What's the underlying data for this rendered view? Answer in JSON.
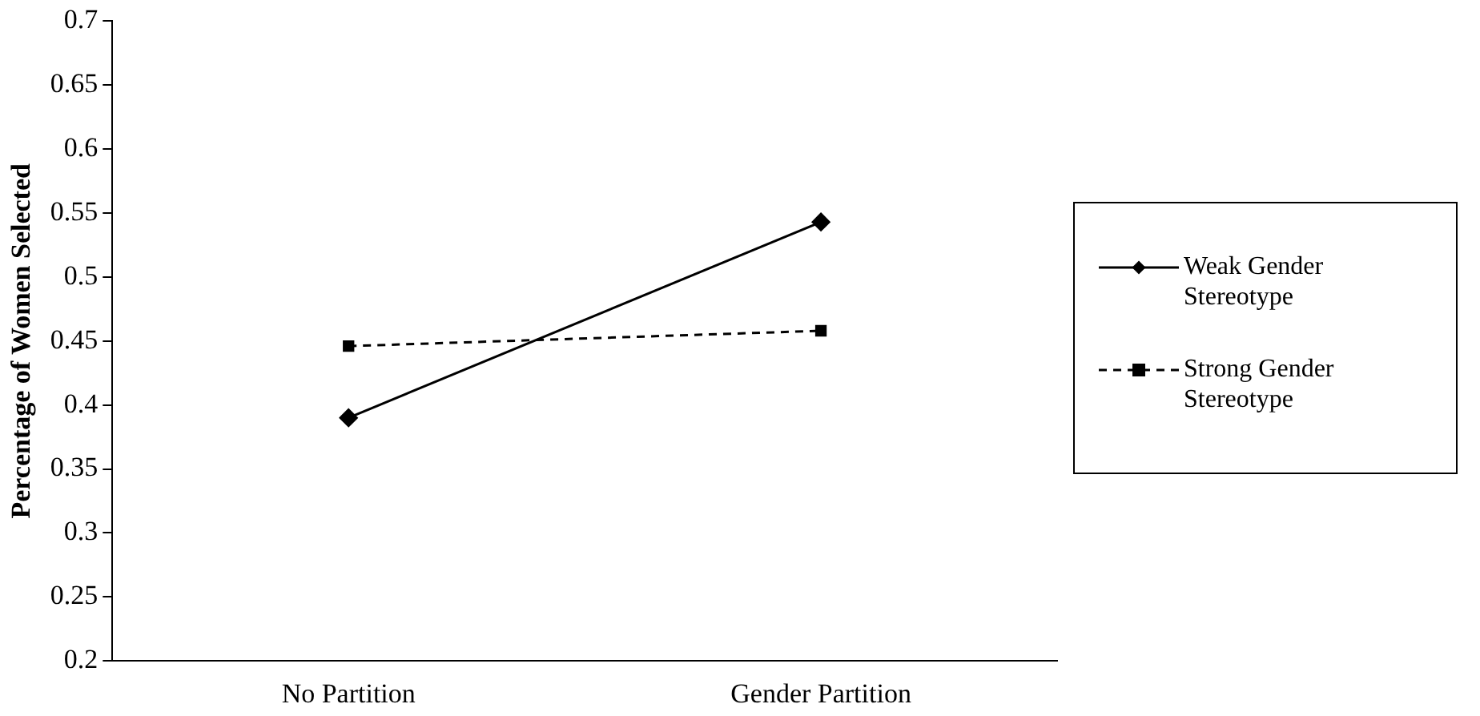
{
  "chart_data": {
    "type": "line",
    "ylabel": "Percentage of Women Selected",
    "categories": [
      "No Partition",
      "Gender Partition"
    ],
    "series": [
      {
        "name": "Weak Gender Stereotype",
        "color": "#000000",
        "values": [
          0.39,
          0.543
        ],
        "marker": "diamond",
        "line_style": "solid"
      },
      {
        "name": "Strong Gender Stereotype",
        "color": "#000000",
        "values": [
          0.446,
          0.458
        ],
        "marker": "square",
        "line_style": "dashed"
      }
    ],
    "ylim": [
      0.2,
      0.7
    ],
    "yticks": [
      0.2,
      0.25,
      0.3,
      0.35,
      0.4,
      0.45,
      0.5,
      0.55,
      0.6,
      0.65,
      0.7
    ],
    "grid": false,
    "legend": "right"
  }
}
